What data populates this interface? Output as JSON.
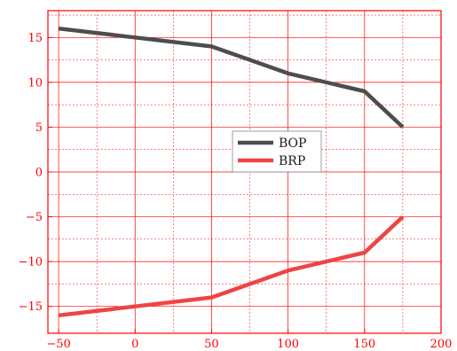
{
  "chart_data": {
    "type": "line",
    "title": "",
    "xlabel": "",
    "ylabel": "",
    "xlim": [
      -57,
      200
    ],
    "ylim": [
      -18,
      18
    ],
    "xticks": [
      -50,
      0,
      50,
      100,
      150,
      200
    ],
    "yticks": [
      -15,
      -10,
      -5,
      0,
      5,
      10,
      15
    ],
    "xtick_labels": [
      "−50",
      "0",
      "50",
      "100",
      "150",
      "200"
    ],
    "ytick_labels": [
      "−15",
      "−10",
      "−5",
      "0",
      "5",
      "10",
      "15"
    ],
    "grid": true,
    "legend_placement": "center",
    "colors": {
      "axis": "#ff0000",
      "grid": "#ff0000"
    },
    "series": [
      {
        "name": "BOP",
        "color": "#4d4d4d",
        "x": [
          -50,
          0,
          50,
          100,
          150,
          175
        ],
        "y": [
          16,
          15,
          14,
          11,
          9,
          5
        ]
      },
      {
        "name": "BRP",
        "color": "#ee4444",
        "x": [
          -50,
          0,
          50,
          100,
          150,
          175
        ],
        "y": [
          -16,
          -15,
          -14,
          -11,
          -9,
          -5
        ]
      }
    ]
  }
}
